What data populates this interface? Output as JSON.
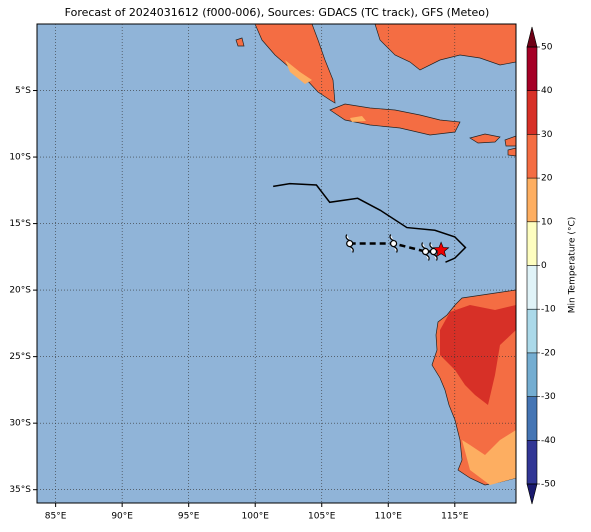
{
  "chart_data": {
    "type": "map",
    "title": "Forecast of 2024031612 (f000-006), Sources: GDACS (TC track), GFS (Meteo)",
    "xlim": [
      83.6,
      119.6
    ],
    "ylim": [
      -36,
      0
    ],
    "xticks": [
      {
        "value": 85,
        "label": "85°E"
      },
      {
        "value": 90,
        "label": "90°E"
      },
      {
        "value": 95,
        "label": "95°E"
      },
      {
        "value": 100,
        "label": "100°E"
      },
      {
        "value": 105,
        "label": "105°E"
      },
      {
        "value": 110,
        "label": "110°E"
      },
      {
        "value": 115,
        "label": "115°E"
      }
    ],
    "yticks": [
      {
        "value": -5,
        "label": "5°S"
      },
      {
        "value": -10,
        "label": "10°S"
      },
      {
        "value": -15,
        "label": "15°S"
      },
      {
        "value": -20,
        "label": "20°S"
      },
      {
        "value": -25,
        "label": "25°S"
      },
      {
        "value": -30,
        "label": "30°S"
      },
      {
        "value": -35,
        "label": "35°S"
      }
    ],
    "grid": true,
    "track": {
      "x": [
        101.35,
        102.6,
        104.6,
        105.6,
        107.7,
        109.4,
        111.4,
        113.5,
        115.0,
        115.8,
        115.0,
        114.3
      ],
      "y": [
        -12.2,
        -12.0,
        -12.1,
        -13.4,
        -13.1,
        -14.0,
        -15.3,
        -15.5,
        -16.0,
        -16.8,
        -17.6,
        -17.9
      ]
    },
    "forecast": {
      "x": [
        107.1,
        110.4,
        112.8,
        113.4,
        113.97
      ],
      "y": [
        -16.5,
        -16.5,
        -17.1,
        -17.1,
        -17.0
      ]
    },
    "colorbar": {
      "label": "Min Temperature (°C)",
      "clim": [
        -50,
        50
      ],
      "ticks": [
        -50,
        -40,
        -30,
        -20,
        -10,
        0,
        10,
        20,
        30,
        40,
        50
      ],
      "colors": [
        "#313695",
        "#4575b4",
        "#74add1",
        "#abd9e9",
        "#e0f3f8",
        "#fefec0",
        "#fdae61",
        "#f46d43",
        "#d73027",
        "#a50026"
      ],
      "extend_colors": [
        "#1a1a6e",
        "#6e0016"
      ]
    }
  }
}
